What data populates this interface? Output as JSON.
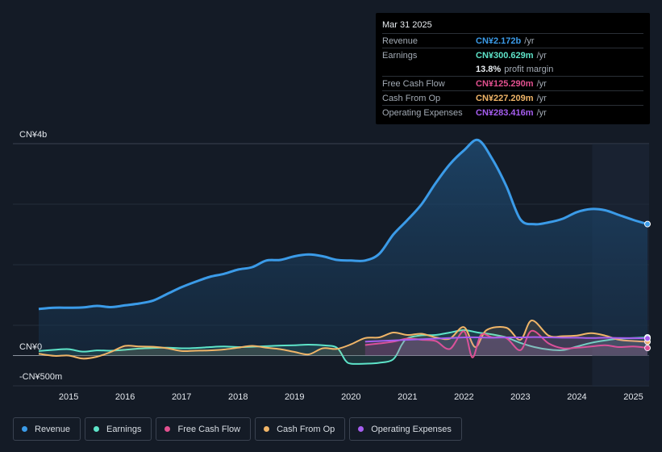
{
  "tooltip": {
    "date": "Mar 31 2025",
    "rows": [
      {
        "label": "Revenue",
        "value": "CN¥2.172b",
        "unit": "/yr",
        "color": "#3b9be8"
      },
      {
        "label": "Earnings",
        "value": "CN¥300.629m",
        "unit": "/yr",
        "color": "#5ee4c9"
      },
      {
        "label": "",
        "value": "13.8%",
        "unit": "profit margin",
        "color": "#e8ecf0"
      },
      {
        "label": "Free Cash Flow",
        "value": "CN¥125.290m",
        "unit": "/yr",
        "color": "#e2508f"
      },
      {
        "label": "Cash From Op",
        "value": "CN¥227.209m",
        "unit": "/yr",
        "color": "#f0b568"
      },
      {
        "label": "Operating Expenses",
        "value": "CN¥283.416m",
        "unit": "/yr",
        "color": "#a65ef0"
      }
    ]
  },
  "legend": [
    {
      "label": "Revenue",
      "color": "#3b9be8"
    },
    {
      "label": "Earnings",
      "color": "#5ee4c9"
    },
    {
      "label": "Free Cash Flow",
      "color": "#e2508f"
    },
    {
      "label": "Cash From Op",
      "color": "#f0b568"
    },
    {
      "label": "Operating Expenses",
      "color": "#a65ef0"
    }
  ],
  "chart_data": {
    "type": "line",
    "y_axis_labels": [
      "CN¥4b",
      "CN¥0",
      "-CN¥500m"
    ],
    "ylim": [
      -500000000,
      3500000000
    ],
    "x_ticks": [
      "2015",
      "2016",
      "2017",
      "2018",
      "2019",
      "2020",
      "2021",
      "2022",
      "2023",
      "2024",
      "2025"
    ],
    "x_tick_values": [
      2015,
      2016,
      2017,
      2018,
      2019,
      2020,
      2021,
      2022,
      2023,
      2024,
      2025
    ],
    "x_range": [
      2014.47,
      2025.25
    ],
    "grid": true,
    "forecast_shade_from": 2024.27,
    "series": [
      {
        "name": "Revenue",
        "color": "#3b9be8",
        "fill": true,
        "points": [
          [
            2014.47,
            770000000
          ],
          [
            2014.75,
            790000000
          ],
          [
            2015.0,
            790000000
          ],
          [
            2015.25,
            795000000
          ],
          [
            2015.5,
            820000000
          ],
          [
            2015.75,
            800000000
          ],
          [
            2016.0,
            830000000
          ],
          [
            2016.25,
            860000000
          ],
          [
            2016.5,
            910000000
          ],
          [
            2016.75,
            1020000000
          ],
          [
            2017.0,
            1130000000
          ],
          [
            2017.25,
            1220000000
          ],
          [
            2017.5,
            1300000000
          ],
          [
            2017.75,
            1350000000
          ],
          [
            2018.0,
            1420000000
          ],
          [
            2018.25,
            1460000000
          ],
          [
            2018.5,
            1570000000
          ],
          [
            2018.75,
            1580000000
          ],
          [
            2019.0,
            1640000000
          ],
          [
            2019.25,
            1670000000
          ],
          [
            2019.5,
            1640000000
          ],
          [
            2019.75,
            1580000000
          ],
          [
            2020.0,
            1570000000
          ],
          [
            2020.25,
            1570000000
          ],
          [
            2020.5,
            1680000000
          ],
          [
            2020.75,
            2000000000
          ],
          [
            2021.0,
            2240000000
          ],
          [
            2021.25,
            2500000000
          ],
          [
            2021.5,
            2850000000
          ],
          [
            2021.75,
            3160000000
          ],
          [
            2022.0,
            3390000000
          ],
          [
            2022.25,
            3560000000
          ],
          [
            2022.5,
            3250000000
          ],
          [
            2022.75,
            2800000000
          ],
          [
            2023.0,
            2250000000
          ],
          [
            2023.25,
            2170000000
          ],
          [
            2023.5,
            2200000000
          ],
          [
            2023.75,
            2260000000
          ],
          [
            2024.0,
            2370000000
          ],
          [
            2024.25,
            2420000000
          ],
          [
            2024.5,
            2400000000
          ],
          [
            2024.75,
            2320000000
          ],
          [
            2025.0,
            2240000000
          ],
          [
            2025.25,
            2172000000
          ]
        ]
      },
      {
        "name": "Earnings",
        "color": "#5ee4c9",
        "fill": false,
        "points": [
          [
            2014.47,
            75000000
          ],
          [
            2014.75,
            95000000
          ],
          [
            2015.0,
            105000000
          ],
          [
            2015.25,
            65000000
          ],
          [
            2015.5,
            85000000
          ],
          [
            2015.75,
            80000000
          ],
          [
            2016.0,
            95000000
          ],
          [
            2016.25,
            115000000
          ],
          [
            2016.5,
            125000000
          ],
          [
            2016.75,
            130000000
          ],
          [
            2017.0,
            120000000
          ],
          [
            2017.25,
            125000000
          ],
          [
            2017.5,
            140000000
          ],
          [
            2017.75,
            150000000
          ],
          [
            2018.0,
            140000000
          ],
          [
            2018.25,
            145000000
          ],
          [
            2018.5,
            155000000
          ],
          [
            2018.75,
            165000000
          ],
          [
            2019.0,
            170000000
          ],
          [
            2019.25,
            180000000
          ],
          [
            2019.5,
            170000000
          ],
          [
            2019.75,
            130000000
          ],
          [
            2019.9,
            -80000000
          ],
          [
            2020.0,
            -135000000
          ],
          [
            2020.25,
            -135000000
          ],
          [
            2020.5,
            -120000000
          ],
          [
            2020.75,
            -60000000
          ],
          [
            2020.9,
            180000000
          ],
          [
            2021.0,
            285000000
          ],
          [
            2021.25,
            335000000
          ],
          [
            2021.5,
            340000000
          ],
          [
            2021.75,
            380000000
          ],
          [
            2022.0,
            420000000
          ],
          [
            2022.25,
            380000000
          ],
          [
            2022.5,
            350000000
          ],
          [
            2022.75,
            300000000
          ],
          [
            2023.0,
            210000000
          ],
          [
            2023.25,
            140000000
          ],
          [
            2023.5,
            100000000
          ],
          [
            2023.75,
            90000000
          ],
          [
            2024.0,
            150000000
          ],
          [
            2024.25,
            210000000
          ],
          [
            2024.5,
            250000000
          ],
          [
            2024.75,
            280000000
          ],
          [
            2025.0,
            290000000
          ],
          [
            2025.25,
            300629000
          ]
        ]
      },
      {
        "name": "Free Cash Flow",
        "color": "#e2508f",
        "fill": false,
        "points": [
          [
            2020.25,
            175000000
          ],
          [
            2020.5,
            200000000
          ],
          [
            2020.75,
            230000000
          ],
          [
            2021.0,
            280000000
          ],
          [
            2021.25,
            260000000
          ],
          [
            2021.5,
            240000000
          ],
          [
            2021.75,
            110000000
          ],
          [
            2022.0,
            400000000
          ],
          [
            2022.15,
            -30000000
          ],
          [
            2022.3,
            340000000
          ],
          [
            2022.5,
            300000000
          ],
          [
            2022.75,
            290000000
          ],
          [
            2023.0,
            90000000
          ],
          [
            2023.2,
            410000000
          ],
          [
            2023.5,
            200000000
          ],
          [
            2023.75,
            120000000
          ],
          [
            2024.0,
            130000000
          ],
          [
            2024.25,
            150000000
          ],
          [
            2024.5,
            170000000
          ],
          [
            2024.75,
            140000000
          ],
          [
            2025.0,
            150000000
          ],
          [
            2025.25,
            125290000
          ]
        ]
      },
      {
        "name": "Cash From Op",
        "color": "#f0b568",
        "fill": false,
        "points": [
          [
            2014.47,
            30000000
          ],
          [
            2014.75,
            -5000000
          ],
          [
            2015.0,
            0
          ],
          [
            2015.25,
            -50000000
          ],
          [
            2015.5,
            -20000000
          ],
          [
            2015.75,
            60000000
          ],
          [
            2016.0,
            160000000
          ],
          [
            2016.25,
            150000000
          ],
          [
            2016.5,
            145000000
          ],
          [
            2016.75,
            120000000
          ],
          [
            2017.0,
            75000000
          ],
          [
            2017.25,
            80000000
          ],
          [
            2017.5,
            85000000
          ],
          [
            2017.75,
            100000000
          ],
          [
            2018.0,
            130000000
          ],
          [
            2018.25,
            160000000
          ],
          [
            2018.5,
            130000000
          ],
          [
            2018.75,
            105000000
          ],
          [
            2019.0,
            60000000
          ],
          [
            2019.25,
            20000000
          ],
          [
            2019.5,
            120000000
          ],
          [
            2019.75,
            110000000
          ],
          [
            2020.0,
            185000000
          ],
          [
            2020.25,
            290000000
          ],
          [
            2020.5,
            300000000
          ],
          [
            2020.75,
            380000000
          ],
          [
            2021.0,
            340000000
          ],
          [
            2021.25,
            360000000
          ],
          [
            2021.5,
            300000000
          ],
          [
            2021.75,
            280000000
          ],
          [
            2022.0,
            470000000
          ],
          [
            2022.2,
            140000000
          ],
          [
            2022.4,
            420000000
          ],
          [
            2022.75,
            460000000
          ],
          [
            2023.0,
            260000000
          ],
          [
            2023.2,
            580000000
          ],
          [
            2023.5,
            330000000
          ],
          [
            2023.75,
            320000000
          ],
          [
            2024.0,
            330000000
          ],
          [
            2024.25,
            370000000
          ],
          [
            2024.5,
            330000000
          ],
          [
            2024.75,
            260000000
          ],
          [
            2025.0,
            240000000
          ],
          [
            2025.25,
            227209000
          ]
        ]
      },
      {
        "name": "Operating Expenses",
        "color": "#a65ef0",
        "fill": false,
        "points": [
          [
            2020.25,
            230000000
          ],
          [
            2020.5,
            240000000
          ],
          [
            2020.75,
            250000000
          ],
          [
            2021.0,
            260000000
          ],
          [
            2021.25,
            270000000
          ],
          [
            2021.5,
            280000000
          ],
          [
            2021.75,
            290000000
          ],
          [
            2022.0,
            300000000
          ],
          [
            2022.25,
            300000000
          ],
          [
            2022.5,
            295000000
          ],
          [
            2022.75,
            300000000
          ],
          [
            2023.0,
            300000000
          ],
          [
            2023.25,
            305000000
          ],
          [
            2023.5,
            300000000
          ],
          [
            2023.75,
            295000000
          ],
          [
            2024.0,
            295000000
          ],
          [
            2024.25,
            290000000
          ],
          [
            2024.5,
            295000000
          ],
          [
            2024.75,
            290000000
          ],
          [
            2025.0,
            288000000
          ],
          [
            2025.25,
            283416000
          ]
        ]
      }
    ]
  }
}
